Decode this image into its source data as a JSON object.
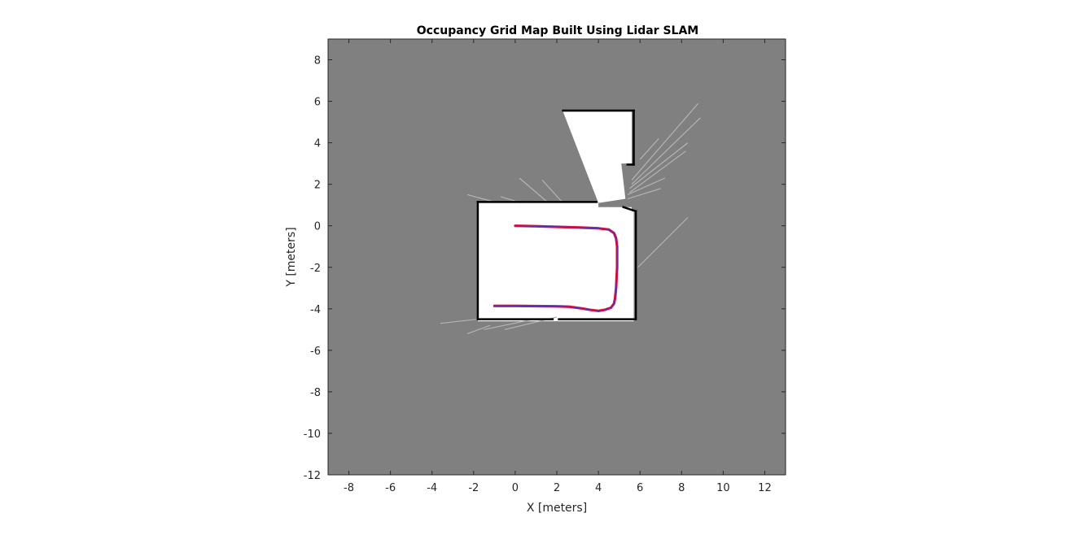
{
  "chart_data": {
    "type": "scatter",
    "title": "Occupancy Grid Map Built Using Lidar SLAM",
    "xlabel": "X [meters]",
    "ylabel": "Y [meters]",
    "xlim": [
      -9,
      13
    ],
    "ylim": [
      -12,
      9
    ],
    "xticks": [
      -8,
      -6,
      -4,
      -2,
      0,
      2,
      4,
      6,
      8,
      10,
      12
    ],
    "yticks": [
      8,
      6,
      4,
      2,
      0,
      -2,
      -4,
      -6,
      -8,
      -10,
      -12
    ],
    "grid": false,
    "colors": {
      "unknown": "#808080",
      "free": "#ffffff",
      "occupied": "#000000",
      "trajectory_outer": "#e8162f",
      "trajectory_inner": "#5a28b8",
      "rays": "#b4b4b4"
    },
    "map_regions": {
      "free_room": [
        [
          -1.8,
          1.1
        ],
        [
          4.0,
          1.1
        ],
        [
          4.0,
          0.9
        ],
        [
          5.6,
          0.9
        ],
        [
          5.6,
          0.7
        ],
        [
          5.7,
          0.7
        ],
        [
          5.7,
          -4.6
        ],
        [
          -1.8,
          -4.6
        ]
      ],
      "free_corridor": [
        [
          2.3,
          5.5
        ],
        [
          5.6,
          5.5
        ],
        [
          5.6,
          3.0
        ],
        [
          5.1,
          3.0
        ],
        [
          5.3,
          1.3
        ],
        [
          4.0,
          1.1
        ]
      ]
    },
    "occupied_walls": [
      [
        [
          -1.8,
          1.15
        ],
        [
          3.9,
          1.15
        ]
      ],
      [
        [
          -1.8,
          1.15
        ],
        [
          -1.8,
          -4.5
        ]
      ],
      [
        [
          -1.8,
          -4.5
        ],
        [
          1.8,
          -4.5
        ]
      ],
      [
        [
          2.1,
          -4.5
        ],
        [
          5.7,
          -4.5
        ]
      ],
      [
        [
          5.8,
          0.7
        ],
        [
          5.8,
          -4.5
        ]
      ],
      [
        [
          5.2,
          0.9
        ],
        [
          5.8,
          0.7
        ]
      ],
      [
        [
          2.3,
          5.55
        ],
        [
          5.7,
          5.55
        ]
      ],
      [
        [
          5.7,
          5.55
        ],
        [
          5.7,
          2.95
        ]
      ],
      [
        [
          5.7,
          2.95
        ],
        [
          5.4,
          2.95
        ]
      ]
    ],
    "ray_segments": [
      [
        [
          -2.3,
          1.5
        ],
        [
          -1.0,
          1.15
        ]
      ],
      [
        [
          -0.7,
          1.4
        ],
        [
          0.3,
          1.1
        ]
      ],
      [
        [
          0.2,
          2.3
        ],
        [
          1.6,
          1.1
        ]
      ],
      [
        [
          1.3,
          2.2
        ],
        [
          2.3,
          1.1
        ]
      ],
      [
        [
          6.0,
          3.2
        ],
        [
          6.9,
          4.2
        ]
      ],
      [
        [
          5.6,
          2.2
        ],
        [
          8.8,
          5.9
        ]
      ],
      [
        [
          5.6,
          2.0
        ],
        [
          8.9,
          5.2
        ]
      ],
      [
        [
          5.5,
          1.8
        ],
        [
          8.3,
          4.0
        ]
      ],
      [
        [
          5.5,
          1.6
        ],
        [
          8.2,
          3.6
        ]
      ],
      [
        [
          5.4,
          1.5
        ],
        [
          7.2,
          2.3
        ]
      ],
      [
        [
          5.4,
          1.3
        ],
        [
          7.0,
          1.8
        ]
      ],
      [
        [
          5.9,
          -2.0
        ],
        [
          8.3,
          0.4
        ]
      ],
      [
        [
          -3.6,
          -4.7
        ],
        [
          -1.8,
          -4.5
        ]
      ],
      [
        [
          -2.3,
          -5.2
        ],
        [
          -1.2,
          -4.8
        ]
      ],
      [
        [
          -1.5,
          -5.0
        ],
        [
          0.9,
          -4.5
        ]
      ],
      [
        [
          -0.5,
          -5.0
        ],
        [
          2.0,
          -4.4
        ]
      ]
    ],
    "series": [
      {
        "x": [
          0.0,
          1.0,
          2.0,
          3.0,
          4.0,
          4.5,
          4.75,
          4.85,
          4.9,
          4.9,
          4.85,
          4.8,
          4.75,
          4.6,
          4.3,
          4.0,
          3.6,
          3.2,
          2.6,
          2.0,
          1.0,
          0.0,
          -1.0
        ],
        "y": [
          0.0,
          -0.02,
          -0.05,
          -0.08,
          -0.12,
          -0.18,
          -0.35,
          -0.6,
          -1.0,
          -2.0,
          -3.0,
          -3.5,
          -3.75,
          -3.95,
          -4.05,
          -4.1,
          -4.05,
          -3.98,
          -3.9,
          -3.88,
          -3.87,
          -3.86,
          -3.86
        ]
      }
    ]
  }
}
